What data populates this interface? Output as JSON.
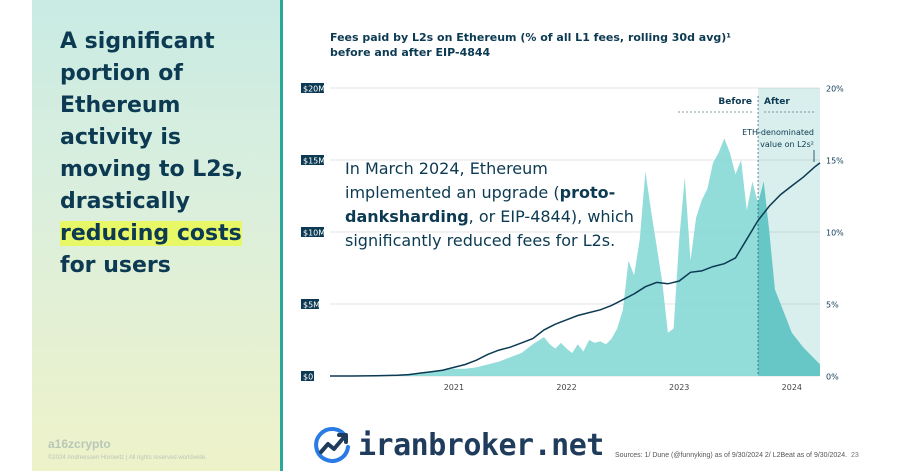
{
  "slide": {
    "headline_before": "A significant portion of Ethereum activity is moving to L2s, drastically",
    "headline_highlight": "reducing costs",
    "headline_after": "for users",
    "brand": "a16zcrypto",
    "copyright": "©2024 Andreessen Horowitz  |  All rights reserved worldwide.",
    "sources": "Sources: 1/ Dune (@funnyking) as of 9/30/2024  2/ L2Beat as of 9/30/2024.",
    "page_number": "23",
    "watermark": "iranbroker.net",
    "overlay_before": "In March 2024, Ethereum implemented an upgrade (",
    "overlay_bold": "proto-danksharding",
    "overlay_after": ", or EIP-4844), which significantly reduced fees for L2s."
  },
  "chart_data": {
    "type": "area",
    "title_line1": "Fees paid by L2s on Ethereum (% of all L1 fees, rolling 30d avg)¹",
    "title_line2": "before and after EIP-4844",
    "x_ticks": [
      "2021",
      "2022",
      "2023",
      "2024"
    ],
    "left_ticks": [
      "0",
      "5M",
      "10M",
      "15M",
      "20M"
    ],
    "right_ticks": [
      "0%",
      "5%",
      "10%",
      "15%",
      "20%"
    ],
    "left_ylim": [
      0,
      20000000
    ],
    "right_ylim": [
      0,
      20
    ],
    "xlim": [
      2020.4,
      2024.75
    ],
    "eip4844_date": 2024.2,
    "labels": {
      "before": "Before",
      "after": "After",
      "eth_value": "ETH-denominated value on L2s²"
    },
    "colors": {
      "area": "#7fd6d4",
      "area_after": "#55bfbf",
      "line": "#0c3a52",
      "after_band": "#2aa79a",
      "grid": "#e6e6e6",
      "label": "#0c3a52"
    },
    "series": [
      {
        "name": "% of all L1 fees",
        "axis": "right",
        "x": [
          2020.4,
          2020.6,
          2020.8,
          2021.0,
          2021.1,
          2021.2,
          2021.3,
          2021.4,
          2021.5,
          2021.6,
          2021.7,
          2021.8,
          2021.9,
          2022.0,
          2022.1,
          2022.2,
          2022.3,
          2022.35,
          2022.4,
          2022.45,
          2022.5,
          2022.55,
          2022.6,
          2022.65,
          2022.7,
          2022.75,
          2022.8,
          2022.85,
          2022.9,
          2022.95,
          2023.0,
          2023.05,
          2023.1,
          2023.15,
          2023.2,
          2023.25,
          2023.3,
          2023.35,
          2023.4,
          2023.45,
          2023.5,
          2023.55,
          2023.6,
          2023.65,
          2023.7,
          2023.75,
          2023.8,
          2023.85,
          2023.9,
          2023.95,
          2024.0,
          2024.05,
          2024.1,
          2024.15,
          2024.2,
          2024.25,
          2024.3,
          2024.35,
          2024.4,
          2024.5,
          2024.6,
          2024.7,
          2024.75
        ],
        "values": [
          0,
          0,
          0.05,
          0.1,
          0.15,
          0.2,
          0.3,
          0.4,
          0.5,
          0.5,
          0.6,
          0.8,
          1.0,
          1.3,
          1.6,
          2.2,
          2.7,
          2.2,
          1.9,
          2.3,
          1.9,
          1.6,
          2.2,
          1.7,
          2.5,
          2.3,
          2.4,
          2.2,
          2.6,
          3.3,
          4.6,
          8.0,
          7.0,
          9.5,
          14.2,
          11.5,
          9.0,
          6.5,
          3.0,
          3.3,
          9.5,
          13.8,
          8.0,
          11.0,
          12.2,
          13.0,
          14.8,
          15.5,
          16.5,
          15.5,
          14.0,
          15.0,
          11.5,
          13.5,
          12.0,
          13.5,
          10.0,
          6.0,
          5.0,
          3.0,
          2.0,
          1.2,
          0.8
        ]
      },
      {
        "name": "ETH-denominated value on L2s",
        "axis": "left",
        "x": [
          2020.4,
          2020.6,
          2020.8,
          2021.0,
          2021.1,
          2021.2,
          2021.3,
          2021.4,
          2021.5,
          2021.6,
          2021.7,
          2021.8,
          2021.9,
          2022.0,
          2022.1,
          2022.2,
          2022.3,
          2022.4,
          2022.5,
          2022.6,
          2022.7,
          2022.8,
          2022.9,
          2023.0,
          2023.1,
          2023.2,
          2023.3,
          2023.4,
          2023.5,
          2023.6,
          2023.7,
          2023.8,
          2023.9,
          2024.0,
          2024.1,
          2024.2,
          2024.3,
          2024.4,
          2024.5,
          2024.6,
          2024.7,
          2024.75
        ],
        "values": [
          0,
          0,
          0.02,
          0.05,
          0.1,
          0.2,
          0.3,
          0.4,
          0.6,
          0.8,
          1.1,
          1.5,
          1.8,
          2.0,
          2.3,
          2.6,
          3.2,
          3.6,
          3.9,
          4.2,
          4.4,
          4.6,
          4.9,
          5.3,
          5.7,
          6.2,
          6.5,
          6.4,
          6.6,
          7.2,
          7.3,
          7.6,
          7.8,
          8.2,
          9.5,
          10.8,
          11.8,
          12.6,
          13.2,
          13.8,
          14.5,
          14.8
        ]
      }
    ]
  }
}
